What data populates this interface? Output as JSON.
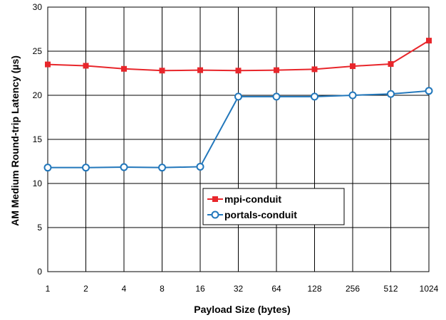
{
  "chart_data": {
    "type": "line",
    "x": [
      "1",
      "2",
      "4",
      "8",
      "16",
      "32",
      "64",
      "128",
      "256",
      "512",
      "1024"
    ],
    "xlabel": "Payload Size (bytes)",
    "ylabel": "AM Medium Round-trip Latency (µs)",
    "ylim": [
      0,
      30
    ],
    "yticks": [
      "0",
      "5",
      "10",
      "15",
      "20",
      "25",
      "30"
    ],
    "grid": true,
    "legend_position": "center-right",
    "series": [
      {
        "name": "mpi-conduit",
        "color": "#e8262b",
        "marker": "filled-square",
        "values": [
          23.5,
          23.35,
          23.0,
          22.8,
          22.85,
          22.8,
          22.85,
          22.95,
          23.3,
          23.55,
          26.2
        ]
      },
      {
        "name": "portals-conduit",
        "color": "#2277bb",
        "marker": "open-circle",
        "values": [
          11.8,
          11.8,
          11.85,
          11.8,
          11.9,
          19.85,
          19.85,
          19.85,
          20.0,
          20.15,
          20.5
        ]
      }
    ]
  }
}
